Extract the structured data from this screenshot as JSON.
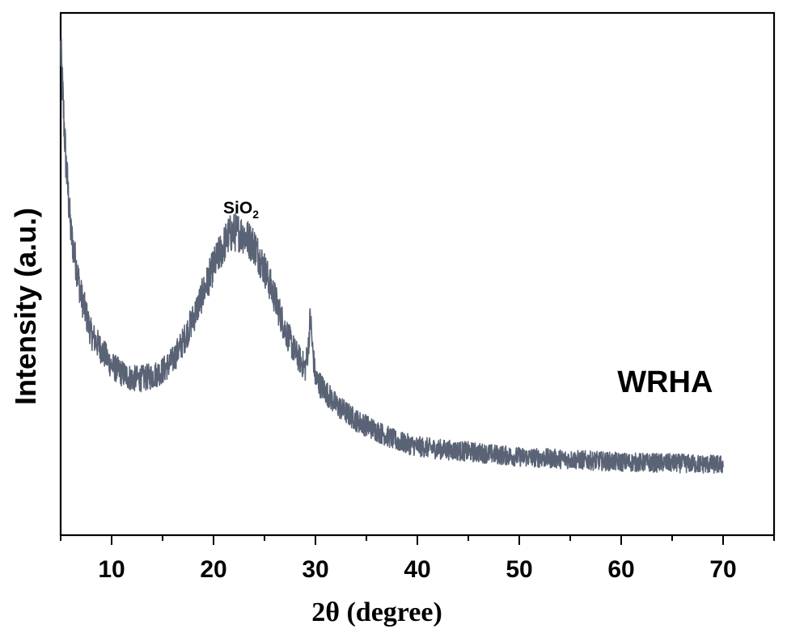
{
  "chart_data": {
    "type": "line",
    "title": "",
    "xlabel": "2θ (degree)",
    "ylabel": "Intensity (a.u.)",
    "xlim": [
      5,
      75
    ],
    "ylim": [
      0,
      100
    ],
    "x_major_ticks": [
      10,
      20,
      30,
      40,
      50,
      60,
      70
    ],
    "x_minor_ticks": [
      5,
      15,
      25,
      35,
      45,
      55,
      65,
      75
    ],
    "y_ticks_shown": false,
    "grid": false,
    "legend": "none",
    "series": [
      {
        "name": "WRHA",
        "color": "#5a6375",
        "x_range": [
          5,
          70
        ],
        "noisy": true,
        "profile_x": [
          5.0,
          5.5,
          6.0,
          7.0,
          8.0,
          9.0,
          10.0,
          11.0,
          12.0,
          13.0,
          14.0,
          15.0,
          16.0,
          17.0,
          18.0,
          19.0,
          20.0,
          21.0,
          21.5,
          22.0,
          22.5,
          23.0,
          23.5,
          24.0,
          25.0,
          26.0,
          27.0,
          28.0,
          29.0,
          29.3,
          29.5,
          29.7,
          30.0,
          31.0,
          32.0,
          33.0,
          34.0,
          35.0,
          36.0,
          37.0,
          38.0,
          40.0,
          42.0,
          45.0,
          50.0,
          55.0,
          60.0,
          65.0,
          70.0
        ],
        "profile_y": [
          93,
          72,
          58,
          46,
          38.5,
          35.5,
          32.5,
          31,
          30,
          30,
          30.5,
          31.5,
          33.5,
          37,
          41.5,
          46.5,
          51.5,
          55.5,
          57.5,
          58,
          58,
          57.5,
          56.5,
          55.5,
          51,
          45.5,
          39.5,
          35,
          32,
          36,
          42,
          36,
          30,
          27.5,
          25,
          23.5,
          22,
          21,
          20,
          19,
          18,
          17,
          16.5,
          16,
          15,
          14.5,
          14,
          13.8,
          13.5
        ]
      }
    ],
    "annotations": [
      {
        "text": "SiO",
        "subscript": "2",
        "x": 22.7,
        "y": 65,
        "note": "peak label"
      }
    ],
    "series_label": {
      "text": "WRHA",
      "x": 62,
      "y": 28
    }
  }
}
